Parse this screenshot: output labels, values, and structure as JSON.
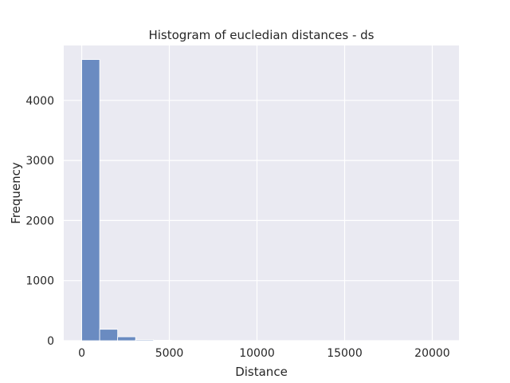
{
  "chart_data": {
    "type": "bar",
    "title": "Histogram of eucledian distances - ds",
    "xlabel": "Distance",
    "ylabel": "Frequency",
    "xlim": [
      -1025,
      21525
    ],
    "ylim": [
      0,
      4914
    ],
    "xticks": [
      0,
      5000,
      10000,
      15000,
      20000
    ],
    "yticks": [
      0,
      1000,
      2000,
      3000,
      4000
    ],
    "grid": true,
    "bin_width": 1025,
    "bins": [
      {
        "x0": 0,
        "x1": 1025,
        "count": 4680
      },
      {
        "x0": 1025,
        "x1": 2050,
        "count": 190
      },
      {
        "x0": 2050,
        "x1": 3075,
        "count": 65
      },
      {
        "x0": 3075,
        "x1": 4100,
        "count": 15
      },
      {
        "x0": 4100,
        "x1": 5125,
        "count": 8
      },
      {
        "x0": 5125,
        "x1": 6150,
        "count": 3
      },
      {
        "x0": 6150,
        "x1": 7175,
        "count": 2
      },
      {
        "x0": 7175,
        "x1": 8200,
        "count": 1
      },
      {
        "x0": 8200,
        "x1": 9225,
        "count": 1
      },
      {
        "x0": 9225,
        "x1": 10250,
        "count": 1
      },
      {
        "x0": 10250,
        "x1": 11275,
        "count": 0
      },
      {
        "x0": 11275,
        "x1": 12300,
        "count": 0
      },
      {
        "x0": 12300,
        "x1": 13325,
        "count": 0
      },
      {
        "x0": 13325,
        "x1": 14350,
        "count": 0
      },
      {
        "x0": 14350,
        "x1": 15375,
        "count": 0
      },
      {
        "x0": 15375,
        "x1": 16400,
        "count": 0
      },
      {
        "x0": 16400,
        "x1": 17425,
        "count": 0
      },
      {
        "x0": 17425,
        "x1": 18450,
        "count": 0
      },
      {
        "x0": 18450,
        "x1": 19475,
        "count": 0
      },
      {
        "x0": 19475,
        "x1": 20500,
        "count": 1
      }
    ],
    "colors": {
      "background": "#eaeaf2",
      "grid": "#ffffff",
      "bar": "#6a8bc1",
      "bar_edge": "#ffffff",
      "text": "#262626"
    }
  }
}
